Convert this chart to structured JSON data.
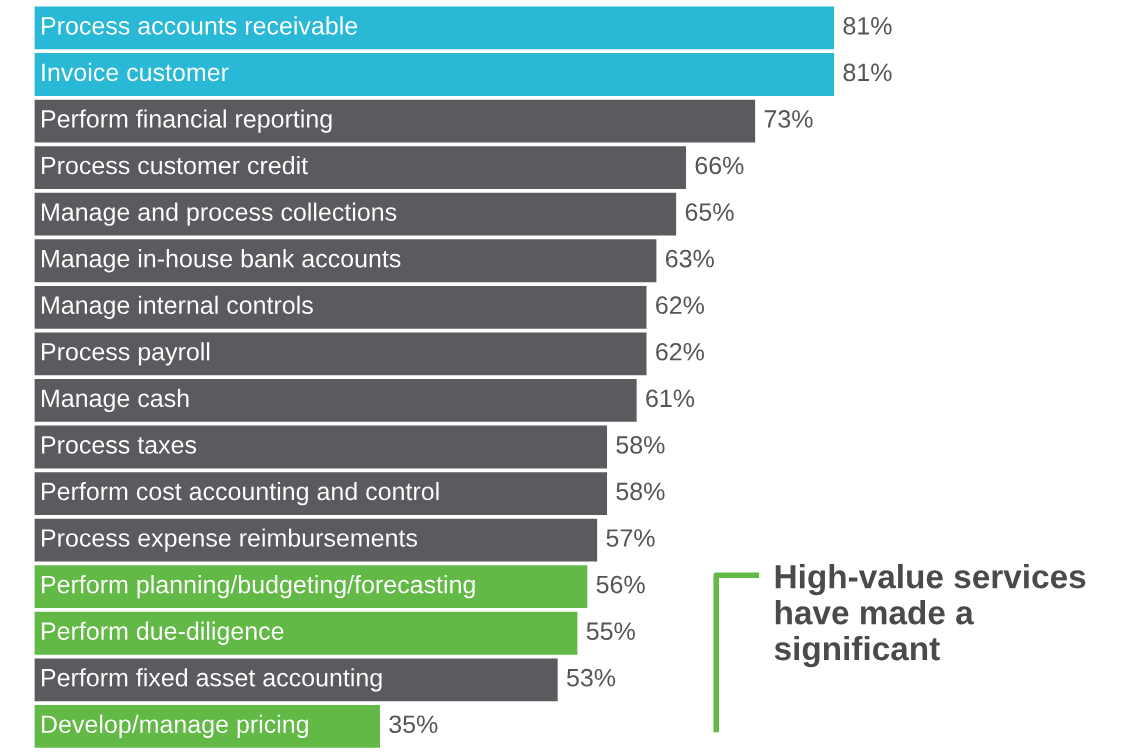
{
  "chart_data": {
    "type": "bar",
    "orientation": "horizontal",
    "categories": [
      "Process accounts receivable",
      "Invoice customer",
      "Perform financial reporting",
      "Process customer credit",
      "Manage and process collections",
      "Manage in-house bank accounts",
      "Manage internal controls",
      "Process payroll",
      "Manage cash",
      "Process taxes",
      "Perform cost accounting and control",
      "Process expense reimbursements",
      "Perform planning/budgeting/forecasting",
      "Perform due-diligence",
      "Perform fixed asset accounting",
      "Develop/manage pricing"
    ],
    "values": [
      81,
      81,
      73,
      66,
      65,
      63,
      62,
      62,
      61,
      58,
      58,
      57,
      56,
      55,
      53,
      35
    ],
    "value_labels": [
      "81%",
      "81%",
      "73%",
      "66%",
      "65%",
      "63%",
      "62%",
      "62%",
      "61%",
      "58%",
      "58%",
      "57%",
      "56%",
      "55%",
      "53%",
      "35%"
    ],
    "colors": [
      "#29b8d6",
      "#29b8d6",
      "#5a5b5e",
      "#5a5b5e",
      "#5a5b5e",
      "#5a5b5e",
      "#5a5b5e",
      "#5a5b5e",
      "#5a5b5e",
      "#5a5b5e",
      "#5a5b5e",
      "#5a5b5e",
      "#62b946",
      "#62b946",
      "#5a5b5e",
      "#62b946"
    ],
    "annotations": [
      "High-value services have made a significant"
    ]
  }
}
